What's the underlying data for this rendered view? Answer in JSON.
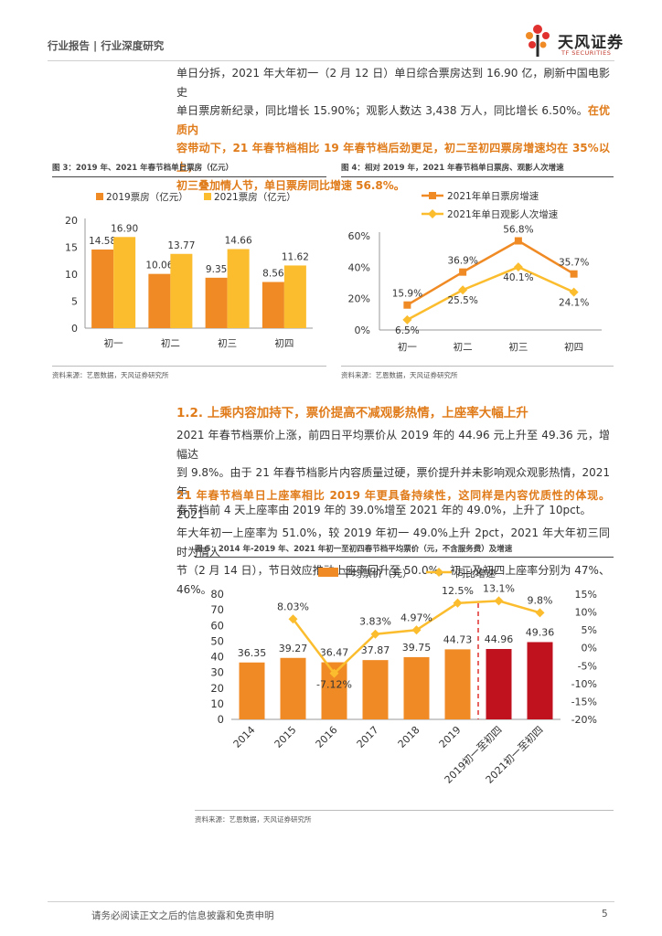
{
  "header": {
    "left_text": "行业报告 | 行业深度研究",
    "logo_cn": "天风证券",
    "logo_en": "TF SECURITIES"
  },
  "intro": {
    "line1": "单日分拆，2021 年大年初一（2 月 12 日）单日综合票房达到 16.90 亿，刷新中国电影史",
    "line2": "单日票房新纪录，同比增长 15.90%；观影人数达 3,438 万人，同比增长 6.50%。",
    "line2_bold": "在优质内",
    "line3_bold": "容带动下，21 年春节档相比 19 年春节档后劲更足，初二至初四票房增速均在 35%以上，",
    "line4_bold": "初三叠加情人节，单日票房同比增速 56.8%。"
  },
  "fig3": {
    "title": "图 3：2019 年、2021 年春节档单日票房（亿元）",
    "source": "资料来源：艺恩数据，天风证券研究所"
  },
  "fig4": {
    "title": "图 4：相对 2019 年，2021 年春节档单日票房、观影人次增速",
    "source": "资料来源：艺恩数据，天风证券研究所"
  },
  "section": {
    "title": "1.2. 上乘内容加持下，票价提高不减观影热情，上座率大幅上升"
  },
  "para2": {
    "line1": "2021 年春节档票价上涨，前四日平均票价从 2019 年的 44.96 元上升至 49.36 元，增幅达",
    "line2": "到 9.8%。由于 21 年春节档影片内容质量过硬，票价提升并未影响观众观影热情，2021 年",
    "line3": "春节档前 4 天上座率由 2019 年的 39.0%增至 2021 年的 49.0%，上升了 10pct。"
  },
  "para3": {
    "line1_bold": "21 年春节档单日上座率相比 2019 年更具备持续性，这同样是内容优质性的体现。",
    "line1_tail": "2021",
    "line2": "年大年初一上座率为 51.0%，较 2019 年初一 49.0%上升 2pct，2021 年大年初三同时为情人",
    "line3": "节（2 月 14 日），节日效应推动上座率回升至 50.0%，初二及初四上座率分别为 47%、46%。"
  },
  "fig5": {
    "title": "图 5：2014 年-2019 年、2021 年初一至初四春节档平均票价（元，不含服务费）及增速",
    "source": "资料来源：艺恩数据，天风证券研究所"
  },
  "footer": {
    "disclaimer": "请务必阅读正文之后的信息披露和免责申明",
    "page": "5"
  },
  "colors": {
    "orange": "#f08a24",
    "yellow": "#fbbd2e",
    "darkred": "#c0111f",
    "accent_text": "#e07b1a"
  },
  "chart_data": [
    {
      "type": "bar",
      "categories": [
        "初一",
        "初二",
        "初三",
        "初四"
      ],
      "series": [
        {
          "name": "2019票房（亿元）",
          "values": [
            14.58,
            10.06,
            9.35,
            8.56
          ],
          "color": "#f08a24"
        },
        {
          "name": "2021票房（亿元）",
          "values": [
            16.9,
            13.77,
            14.66,
            11.62
          ],
          "color": "#fbbd2e"
        }
      ],
      "ylim": [
        0,
        20
      ],
      "yticks": [
        0,
        5,
        10,
        15,
        20
      ],
      "legend": "top"
    },
    {
      "type": "line",
      "categories": [
        "初一",
        "初二",
        "初三",
        "初四"
      ],
      "series": [
        {
          "name": "2021年单日票房增速",
          "values": [
            15.9,
            36.9,
            56.8,
            35.7
          ],
          "labels": [
            "15.9%",
            "36.9%",
            "56.8%",
            "35.7%"
          ],
          "color": "#f08a24",
          "marker": "square"
        },
        {
          "name": "2021年单日观影人次增速",
          "values": [
            6.5,
            25.5,
            40.1,
            24.1
          ],
          "labels": [
            "6.5%",
            "25.5%",
            "40.1%",
            "24.1%"
          ],
          "color": "#fbbd2e",
          "marker": "diamond"
        }
      ],
      "ylim": [
        0,
        60
      ],
      "yticks": [
        "0%",
        "20%",
        "40%",
        "60%"
      ],
      "legend": "top"
    },
    {
      "type": "bar",
      "categories": [
        "2014",
        "2015",
        "2016",
        "2017",
        "2018",
        "2019",
        "2019初一至初四",
        "2021初一至初四"
      ],
      "series": [
        {
          "name": "平均票价（元）",
          "values": [
            36.35,
            39.27,
            36.47,
            37.87,
            39.75,
            44.73,
            44.96,
            49.36
          ],
          "labels": [
            "36.35",
            "39.27",
            "36.47",
            "37.87",
            "39.75",
            "44.73",
            "44.96",
            "49.36"
          ],
          "color": "#f08a24"
        },
        {
          "name": "同比增速",
          "type": "line",
          "axis": "right",
          "values": [
            null,
            8.03,
            -7.12,
            3.83,
            4.97,
            12.5,
            13.1,
            9.8
          ],
          "labels": [
            "",
            "8.03%",
            "-7.12%",
            "3.83%",
            "4.97%",
            "12.5%",
            "13.1%",
            "9.8%"
          ],
          "color": "#fbbd2e"
        }
      ],
      "ylim": [
        0,
        80
      ],
      "yticks": [
        0,
        10,
        20,
        30,
        40,
        50,
        60,
        70,
        80
      ],
      "y2lim": [
        -20,
        15
      ],
      "y2ticks": [
        "-20%",
        "-15%",
        "-10%",
        "-5%",
        "0%",
        "5%",
        "10%",
        "15%"
      ],
      "legend": "top"
    }
  ]
}
